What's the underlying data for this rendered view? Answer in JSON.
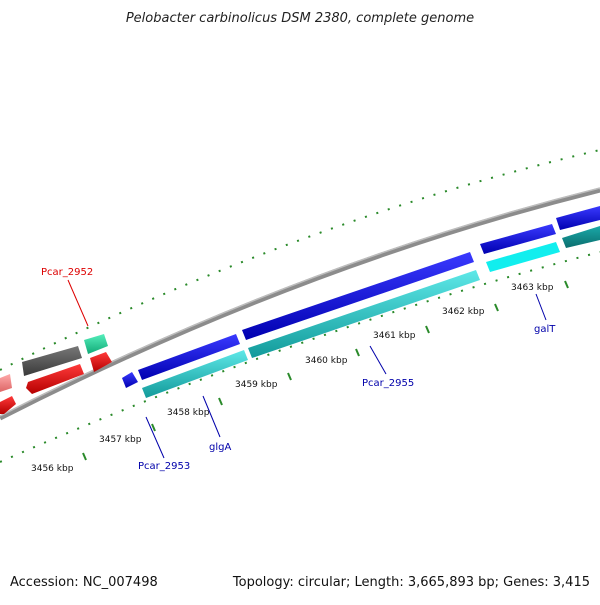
{
  "title": "Pelobacter carbinolicus DSM 2380, complete genome",
  "footer": {
    "accession": "Accession: NC_007498",
    "summary": "Topology: circular; Length: 3,665,893 bp; Genes: 3,415"
  },
  "scale": {
    "ticks": [
      "3456 kbp",
      "3457 kbp",
      "3458 kbp",
      "3459 kbp",
      "3460 kbp",
      "3461 kbp",
      "3462 kbp",
      "3463 kbp"
    ]
  },
  "genes": [
    {
      "name": "Pcar_2952",
      "color": "#dd0000"
    },
    {
      "name": "Pcar_2953",
      "color": "#0000aa"
    },
    {
      "name": "glgA",
      "color": "#0000aa"
    },
    {
      "name": "Pcar_2955",
      "color": "#0000aa"
    },
    {
      "name": "galT",
      "color": "#0000aa"
    }
  ],
  "colors": {
    "backbone": "#8c8c8c",
    "cds_forward": "#1a1ad8",
    "rna_forward": "#22c4c4",
    "cds_other": "#e51b1b",
    "cds_pseudo": "#666666",
    "rna_other": "#33ddaa",
    "tick": "#2a8a2a"
  }
}
